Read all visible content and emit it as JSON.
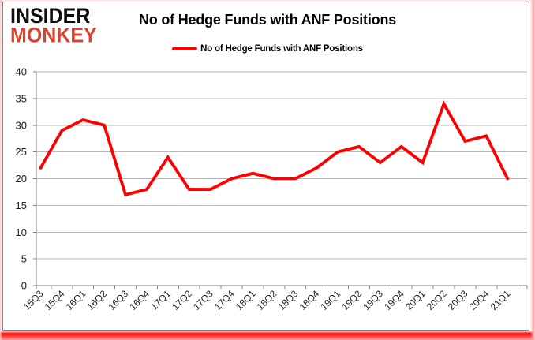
{
  "logo": {
    "line1": "INSIDER",
    "line2": "MONKEY"
  },
  "title": "No of Hedge Funds with ANF Positions",
  "legend": {
    "label": "No of Hedge Funds with ANF Positions"
  },
  "colors": {
    "line": "#ff0000",
    "grid": "#b7b7b7",
    "axis": "#808080",
    "tick_text": "#1f1f1f",
    "title_text": "#000000",
    "logo_black": "#0d0d0d",
    "logo_red": "#d9432e",
    "panel_border": "#808080"
  },
  "chart_data": {
    "type": "line",
    "title": "No of Hedge Funds with ANF Positions",
    "categories": [
      "15Q3",
      "15Q4",
      "16Q1",
      "16Q2",
      "16Q3",
      "16Q4",
      "17Q1",
      "17Q2",
      "17Q3",
      "17Q4",
      "18Q1",
      "18Q2",
      "18Q3",
      "18Q4",
      "19Q1",
      "19Q2",
      "19Q3",
      "19Q4",
      "20Q1",
      "20Q2",
      "20Q3",
      "20Q4",
      "21Q1"
    ],
    "series": [
      {
        "name": "No of Hedge Funds with ANF Positions",
        "color": "#ff0000",
        "values": [
          22,
          29,
          31,
          30,
          17,
          18,
          24,
          18,
          18,
          20,
          21,
          20,
          20,
          22,
          25,
          26,
          23,
          26,
          23,
          34,
          27,
          28,
          20
        ]
      }
    ],
    "xlabel": "",
    "ylabel": "",
    "ylim": [
      0,
      40
    ],
    "ytick_step": 5,
    "y_ticks": [
      0,
      5,
      10,
      15,
      20,
      25,
      30,
      35,
      40
    ],
    "grid": true,
    "legend_position": "top-center"
  }
}
